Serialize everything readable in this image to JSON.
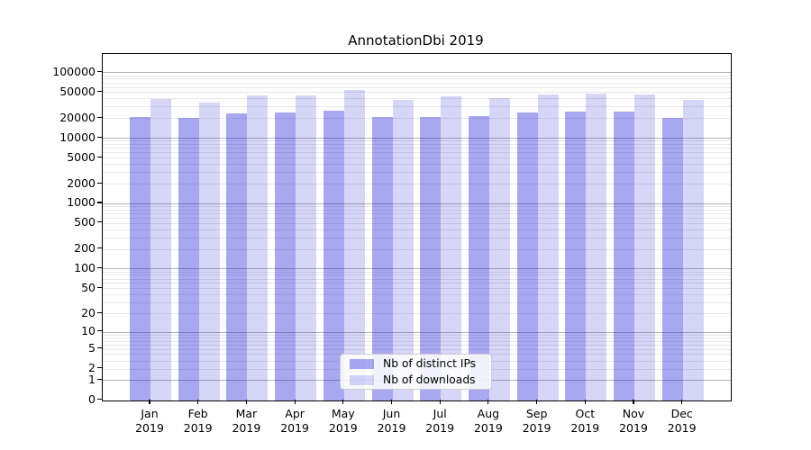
{
  "title": "AnnotationDbi 2019",
  "chart_data": {
    "type": "bar",
    "title": "AnnotationDbi 2019",
    "xlabel": "",
    "ylabel": "",
    "yscale": "log-like (symlog, 0 at baseline)",
    "ylim": [
      0,
      180000
    ],
    "grid": "both (major + minor horizontal gridlines)",
    "legend_position": "lower center",
    "categories": [
      "Jan 2019",
      "Feb 2019",
      "Mar 2019",
      "Apr 2019",
      "May 2019",
      "Jun 2019",
      "Jul 2019",
      "Aug 2019",
      "Sep 2019",
      "Oct 2019",
      "Nov 2019",
      "Dec 2019"
    ],
    "series": [
      {
        "name": "Nb of distinct IPs",
        "fill": "rgba(0,0,210,0.34)",
        "solid_hex": "#a9a9f1",
        "values": [
          21000,
          20000,
          23500,
          24500,
          26000,
          20500,
          20500,
          21500,
          24000,
          25000,
          25000,
          20000
        ]
      },
      {
        "name": "Nb of downloads",
        "fill": "rgba(0,0,210,0.16)",
        "solid_hex": "#d8d8f8",
        "values": [
          39000,
          35000,
          44000,
          45000,
          53000,
          38500,
          43500,
          40000,
          46000,
          47000,
          46500,
          37500
        ]
      }
    ],
    "y_ticks": [
      0,
      1,
      2,
      5,
      10,
      20,
      50,
      100,
      200,
      500,
      1000,
      2000,
      5000,
      10000,
      20000,
      50000,
      100000
    ],
    "colors": {
      "grid_major": "#b4b4b4",
      "grid_minor": "#e8e8e8",
      "spine": "#000000",
      "text": "#000000",
      "background": "#ffffff"
    }
  }
}
